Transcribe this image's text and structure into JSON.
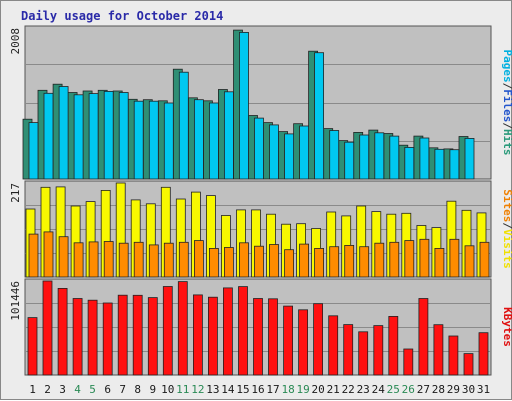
{
  "chart_data": {
    "type": "bar",
    "title": "Daily usage for October 2014",
    "categories": [
      "1",
      "2",
      "3",
      "4",
      "5",
      "6",
      "7",
      "8",
      "9",
      "10",
      "11",
      "12",
      "13",
      "14",
      "15",
      "16",
      "17",
      "18",
      "19",
      "20",
      "21",
      "22",
      "23",
      "24",
      "25",
      "26",
      "27",
      "28",
      "29",
      "30",
      "31"
    ],
    "weekend_days": [
      4,
      5,
      11,
      12,
      18,
      19,
      25,
      26
    ],
    "panels": [
      {
        "id": "top",
        "max_label": "2008",
        "ymax": 2008,
        "right_label": [
          "Pages",
          "/",
          "Files",
          "/",
          "Hits"
        ],
        "right_label_colors": [
          "#00b0e0",
          "#333333",
          "#2255cc",
          "#333333",
          "#2a9a7a"
        ],
        "series": [
          {
            "name": "Hits",
            "color": "#2f8f75",
            "values": [
              795,
              1180,
              1260,
              1150,
              1170,
              1180,
              1170,
              1060,
              1055,
              1040,
              1460,
              1080,
              1040,
              1190,
              1980,
              845,
              750,
              630,
              735,
              1700,
              670,
              510,
              620,
              650,
              605,
              450,
              570,
              415,
              400,
              565,
              0
            ]
          },
          {
            "name": "Files",
            "color": "#2040b0",
            "values": [
              0,
              0,
              0,
              0,
              0,
              0,
              0,
              0,
              0,
              0,
              0,
              0,
              0,
              0,
              0,
              0,
              0,
              0,
              0,
              0,
              0,
              0,
              0,
              0,
              0,
              0,
              0,
              0,
              0,
              0,
              0
            ]
          },
          {
            "name": "Pages",
            "color": "#00c8f0",
            "values": [
              750,
              1140,
              1230,
              1120,
              1135,
              1165,
              1150,
              1035,
              1035,
              1010,
              1420,
              1055,
              1010,
              1160,
              1950,
              810,
              720,
              600,
              705,
              1680,
              645,
              490,
              585,
              615,
              570,
              420,
              545,
              395,
              390,
              540,
              0
            ]
          }
        ]
      },
      {
        "id": "middle",
        "max_label": "217",
        "ymax": 217,
        "right_label": [
          "Sites",
          "/",
          "Visits"
        ],
        "right_label_colors": [
          "#f08000",
          "#333333",
          "#f0e000"
        ],
        "series": [
          {
            "name": "Visits",
            "color": "#f8f800",
            "values": [
              157,
              207,
              208,
              164,
              174,
              200,
              217,
              178,
              169,
              207,
              180,
              196,
              188,
              142,
              155,
              155,
              145,
              122,
              123,
              112,
              150,
              141,
              164,
              151,
              145,
              147,
              119,
              114,
              175,
              154,
              148
            ]
          },
          {
            "name": "Sites",
            "color": "#ff8c00",
            "values": [
              99,
              104,
              93,
              79,
              81,
              82,
              78,
              80,
              74,
              78,
              80,
              84,
              66,
              68,
              79,
              71,
              75,
              63,
              76,
              66,
              70,
              73,
              70,
              78,
              80,
              84,
              87,
              66,
              87,
              72,
              80
            ]
          }
        ]
      },
      {
        "id": "bottom",
        "max_label": "101446",
        "ymax": 101446,
        "right_label": [
          "KBytes"
        ],
        "right_label_colors": [
          "#e01010"
        ],
        "series": [
          {
            "name": "KBytes",
            "color": "#ff1010",
            "values": [
              62000,
              101400,
              93500,
              82600,
              80700,
              77700,
              86100,
              86000,
              83500,
              95500,
              100800,
              86400,
              84000,
              94000,
              95400,
              82600,
              82200,
              74400,
              70400,
              76900,
              63900,
              54400,
              46600,
              53300,
              63200,
              28100,
              82600,
              54300,
              42100,
              23100,
              45600
            ]
          }
        ]
      }
    ],
    "colors": {
      "background": "#ececec",
      "plot_background": "#c0c0c0",
      "weekday_label": "#1a1a1a",
      "weekend_label": "#2a8a55"
    }
  }
}
